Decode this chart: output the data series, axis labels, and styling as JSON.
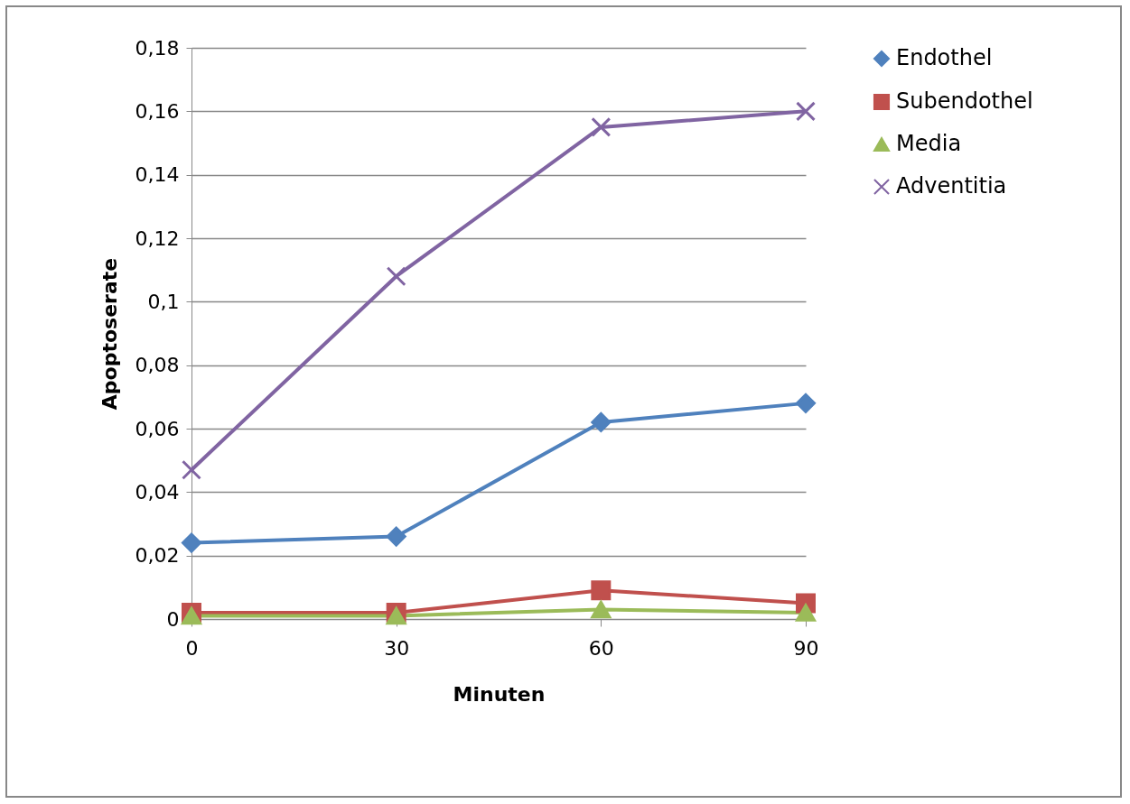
{
  "chart_data": {
    "type": "line",
    "xlabel": "Minuten",
    "ylabel": "Apoptoserate",
    "x": [
      0,
      30,
      60,
      90
    ],
    "series": [
      {
        "name": "Endothel",
        "color": "#4f81bd",
        "marker": "diamond",
        "values": [
          0.024,
          0.026,
          0.062,
          0.068
        ]
      },
      {
        "name": "Subendothel",
        "color": "#c0504d",
        "marker": "square",
        "values": [
          0.002,
          0.002,
          0.009,
          0.005
        ]
      },
      {
        "name": "Media",
        "color": "#9bbb59",
        "marker": "triangle",
        "values": [
          0.001,
          0.001,
          0.003,
          0.002
        ]
      },
      {
        "name": "Adventitia",
        "color": "#8064a2",
        "marker": "cross",
        "values": [
          0.047,
          0.108,
          0.155,
          0.16
        ]
      }
    ],
    "xlim": [
      0,
      90
    ],
    "xticks": [
      0,
      30,
      60,
      90
    ],
    "ylim": [
      0,
      0.18
    ],
    "yticks": [
      0,
      {
        "value": 0.02,
        "label": "0,02"
      },
      {
        "value": 0.04,
        "label": "0,04"
      },
      {
        "value": 0.06,
        "label": "0,06"
      },
      {
        "value": 0.08,
        "label": "0,08"
      },
      {
        "value": 0.1,
        "label": "0,1"
      },
      {
        "value": 0.12,
        "label": "0,12"
      },
      {
        "value": 0.14,
        "label": "0,14"
      },
      {
        "value": 0.16,
        "label": "0,16"
      },
      {
        "value": 0.18,
        "label": "0,18"
      }
    ],
    "grid": "y",
    "legend": "right",
    "line_style": "solid"
  }
}
